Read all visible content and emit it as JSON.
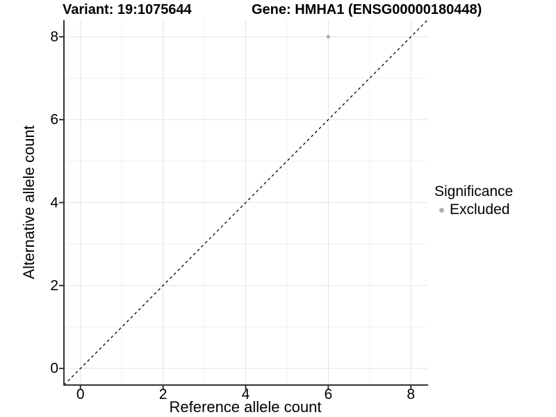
{
  "chart_data": {
    "type": "scatter",
    "title_left": "Variant: 19:1075644",
    "title_right": "Gene: HMHA1 (ENSG00000180448)",
    "xlabel": "Reference allele count",
    "ylabel": "Alternative allele count",
    "xlim": [
      -0.4,
      8.4
    ],
    "ylim": [
      -0.4,
      8.4
    ],
    "x_major_ticks": [
      0,
      2,
      4,
      6,
      8
    ],
    "y_major_ticks": [
      0,
      2,
      4,
      6,
      8
    ],
    "x_minor_gridlines": [
      1,
      3,
      5,
      7
    ],
    "y_minor_gridlines": [
      1,
      3,
      5,
      7
    ],
    "grid": true,
    "points": [
      {
        "x": 6,
        "y": 8,
        "series": "Excluded"
      }
    ],
    "reference_line": {
      "equation": "y = x",
      "style": "dashed",
      "from": [
        -0.4,
        -0.4
      ],
      "to": [
        8.4,
        8.4
      ],
      "color": "#000000"
    },
    "legend": {
      "title": "Significance",
      "position": "right",
      "items": [
        {
          "label": "Excluded",
          "color": "#b0b0b0",
          "marker": "circle"
        }
      ]
    }
  },
  "colors": {
    "background": "#ffffff",
    "point": "#b0b0b0",
    "grid_major": "#e3e3e3",
    "grid_minor": "#efefef",
    "axis": "#333333",
    "text": "#000000"
  }
}
